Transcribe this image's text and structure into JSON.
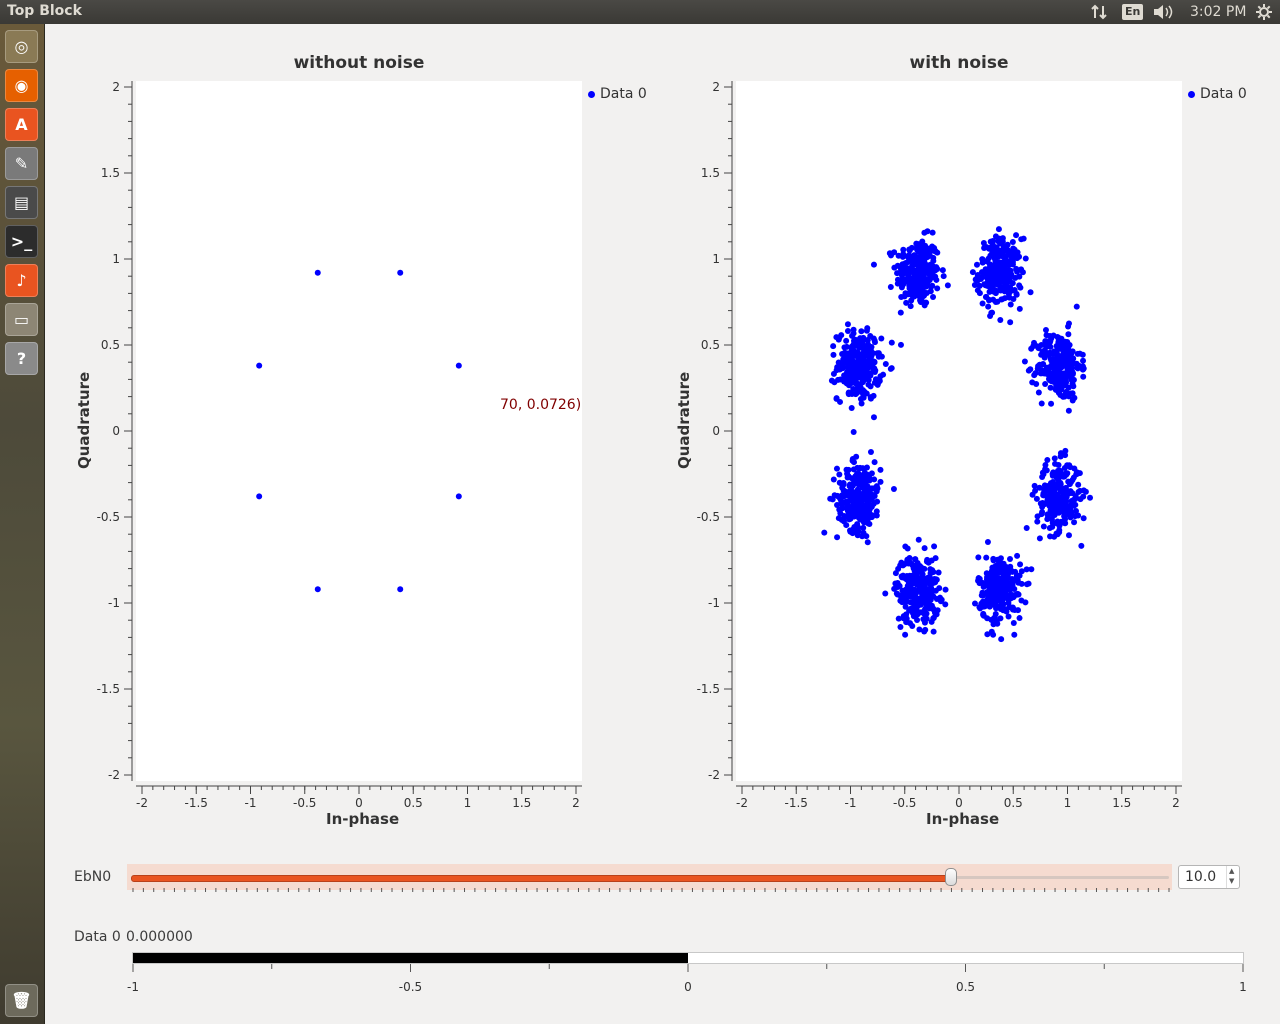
{
  "topbar": {
    "app_title": "Top Block",
    "keyboard_layout": "En",
    "clock": "3:02 PM",
    "icons": [
      "network-icon",
      "keyboard-icon",
      "volume-icon",
      "settings-gear-icon"
    ]
  },
  "launcher": {
    "items": [
      {
        "name": "dash-home-icon",
        "glyph": "◎",
        "color": "#8a7a55"
      },
      {
        "name": "firefox-icon",
        "glyph": "◉",
        "color": "#e66000"
      },
      {
        "name": "software-center-icon",
        "glyph": "A",
        "color": "#e95420"
      },
      {
        "name": "system-settings-icon",
        "glyph": "✎",
        "color": "#7a7a7a"
      },
      {
        "name": "video-editor-icon",
        "glyph": "▤",
        "color": "#4a4a4a"
      },
      {
        "name": "terminal-icon",
        "glyph": ">_",
        "color": "#2c2c2c"
      },
      {
        "name": "gnuradio-icon",
        "glyph": "♪",
        "color": "#e95420"
      },
      {
        "name": "files-icon",
        "glyph": "▭",
        "color": "#8d8675"
      },
      {
        "name": "help-icon",
        "glyph": "?",
        "color": "#8a8a8a"
      }
    ],
    "trash": {
      "name": "trash-icon",
      "glyph": "🗑"
    }
  },
  "left_plot": {
    "title": "without noise",
    "xlabel": "In-phase",
    "ylabel": "Quadrature",
    "legend": "Data 0",
    "tracker_text": "70, 0.0726)"
  },
  "right_plot": {
    "title": "with noise",
    "xlabel": "In-phase",
    "ylabel": "Quadrature",
    "legend": "Data 0"
  },
  "controls": {
    "ebn0_label": "EbN0",
    "ebn0_value": "10.0",
    "ebn0_fraction": 0.79,
    "data0_label": "Data 0",
    "data0_value": "0.000000",
    "bar_fraction": 0.5,
    "bar_ticks": [
      "-1",
      "-0.5",
      "0",
      "0.5",
      "1"
    ]
  },
  "chart_data": [
    {
      "type": "scatter",
      "title": "without noise",
      "xlabel": "In-phase",
      "ylabel": "Quadrature",
      "xlim": [
        -2,
        2
      ],
      "ylim": [
        -2,
        2
      ],
      "xticks": [
        "-2",
        "-1.5",
        "-1",
        "-0.5",
        "0",
        "0.5",
        "1",
        "1.5",
        "2"
      ],
      "yticks": [
        "2",
        "1.5",
        "1",
        "0.5",
        "0",
        "-0.5",
        "-1",
        "-1.5",
        "-2"
      ],
      "legend": "top-right",
      "series": [
        {
          "name": "Data 0",
          "color": "#0000ff",
          "points": [
            [
              -0.38,
              0.92
            ],
            [
              0.38,
              0.92
            ],
            [
              -0.92,
              0.38
            ],
            [
              0.92,
              0.38
            ],
            [
              -0.92,
              -0.38
            ],
            [
              0.92,
              -0.38
            ],
            [
              -0.38,
              -0.92
            ],
            [
              0.38,
              -0.92
            ]
          ]
        }
      ]
    },
    {
      "type": "scatter",
      "title": "with noise",
      "xlabel": "In-phase",
      "ylabel": "Quadrature",
      "xlim": [
        -2,
        2
      ],
      "ylim": [
        -2,
        2
      ],
      "xticks": [
        "-2",
        "-1.5",
        "-1",
        "-0.5",
        "0",
        "0.5",
        "1",
        "1.5",
        "2"
      ],
      "yticks": [
        "2",
        "1.5",
        "1",
        "0.5",
        "0",
        "-0.5",
        "-1",
        "-1.5",
        "-2"
      ],
      "legend": "top-right",
      "series": [
        {
          "name": "Data 0",
          "color": "#0000ff",
          "cluster_centers": [
            [
              -0.38,
              0.92
            ],
            [
              0.38,
              0.92
            ],
            [
              -0.92,
              0.38
            ],
            [
              0.92,
              0.38
            ],
            [
              -0.92,
              -0.38
            ],
            [
              0.92,
              -0.38
            ],
            [
              -0.38,
              -0.92
            ],
            [
              0.38,
              -0.92
            ]
          ],
          "cluster_spread": [
            0.1,
            0.1
          ]
        }
      ]
    }
  ]
}
